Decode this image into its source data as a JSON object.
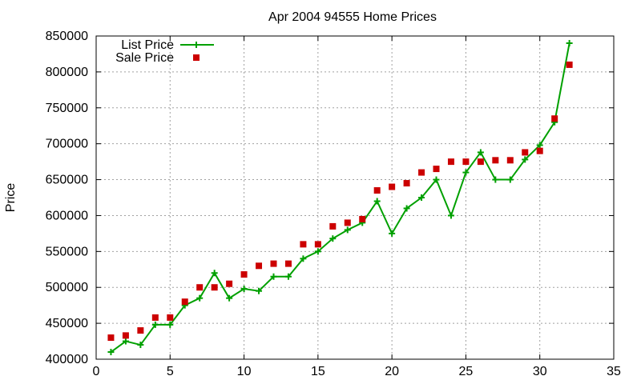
{
  "chart_data": {
    "type": "line",
    "title": "Apr 2004 94555 Home Prices",
    "xlabel": "",
    "ylabel": "Price",
    "xlim": [
      0,
      35
    ],
    "ylim": [
      400000,
      850000
    ],
    "xticks": [
      0,
      5,
      10,
      15,
      20,
      25,
      30,
      35
    ],
    "yticks": [
      400000,
      450000,
      500000,
      550000,
      600000,
      650000,
      700000,
      750000,
      800000,
      850000
    ],
    "grid": true,
    "legend_position": "top-left",
    "series": [
      {
        "name": "List Price",
        "style": "line+points",
        "color": "#00a000",
        "marker": "plus",
        "x": [
          1,
          2,
          3,
          4,
          5,
          6,
          7,
          8,
          9,
          10,
          11,
          12,
          13,
          14,
          15,
          16,
          17,
          18,
          19,
          20,
          21,
          22,
          23,
          24,
          25,
          26,
          27,
          28,
          29,
          30,
          31,
          32
        ],
        "y": [
          410000,
          425000,
          420000,
          448000,
          448000,
          475000,
          485000,
          520000,
          485000,
          498000,
          495000,
          515000,
          515000,
          540000,
          550000,
          568000,
          580000,
          590000,
          620000,
          575000,
          610000,
          625000,
          650000,
          600000,
          660000,
          688000,
          650000,
          650000,
          678000,
          698000,
          730000,
          840000
        ]
      },
      {
        "name": "Sale Price",
        "style": "points",
        "color": "#cc0000",
        "marker": "square",
        "x": [
          1,
          2,
          3,
          4,
          5,
          6,
          7,
          8,
          9,
          10,
          11,
          12,
          13,
          14,
          15,
          16,
          17,
          18,
          19,
          20,
          21,
          22,
          23,
          24,
          25,
          26,
          27,
          28,
          29,
          30,
          31,
          32
        ],
        "y": [
          430000,
          433000,
          440000,
          458000,
          458000,
          480000,
          500000,
          500000,
          505000,
          518000,
          530000,
          533000,
          533000,
          560000,
          560000,
          585000,
          590000,
          595000,
          635000,
          640000,
          645000,
          660000,
          665000,
          675000,
          675000,
          675000,
          677000,
          677000,
          688000,
          690000,
          735000,
          810000
        ]
      }
    ]
  }
}
